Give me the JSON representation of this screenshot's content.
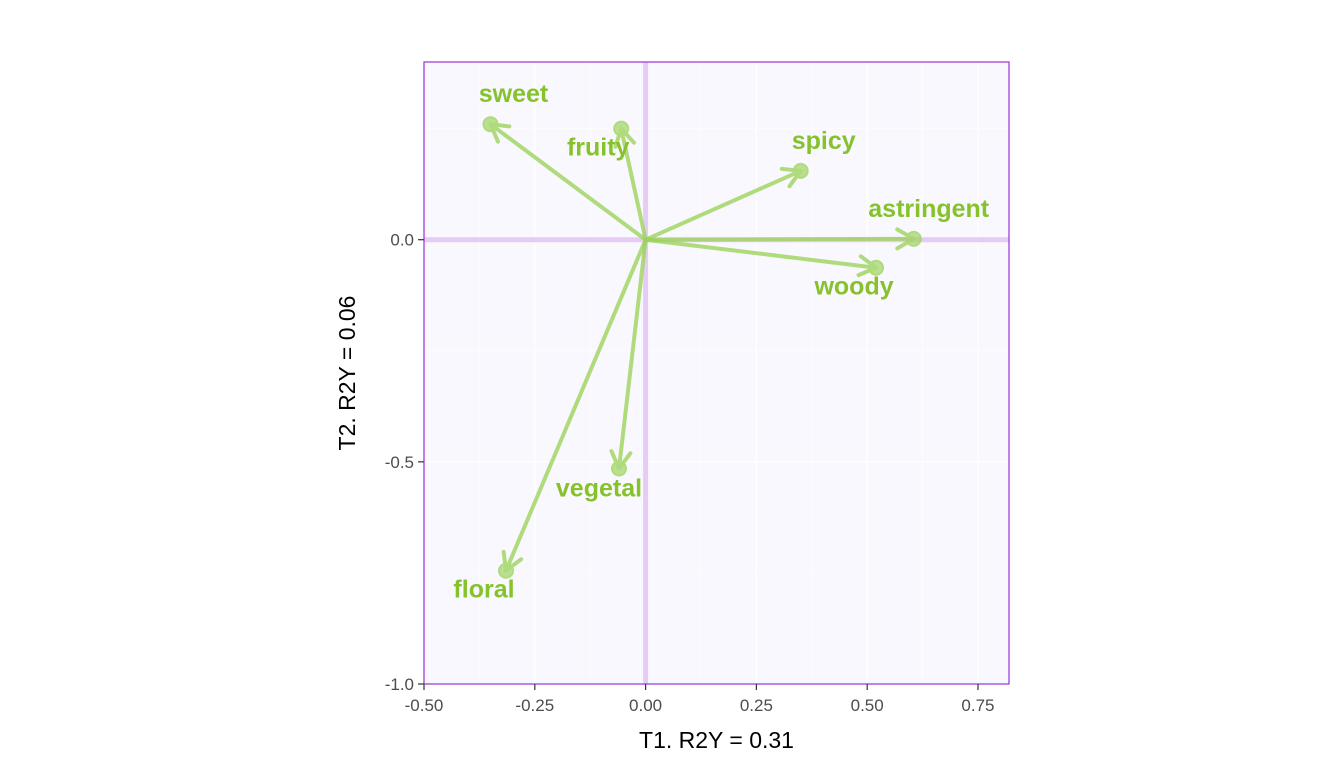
{
  "chart_data": {
    "type": "scatter",
    "subtype": "loading-arrows",
    "xlabel": "T1. R2Y = 0.31",
    "ylabel": "T2. R2Y = 0.06",
    "xlim": [
      -0.5,
      0.82
    ],
    "ylim": [
      -1.0,
      0.4
    ],
    "xticks": [
      -0.5,
      -0.25,
      0.0,
      0.25,
      0.5,
      0.75
    ],
    "xtick_labels": [
      "-0.50",
      "-0.25",
      "0.00",
      "0.25",
      "0.50",
      "0.75"
    ],
    "yticks": [
      -1.0,
      -0.5,
      0.0
    ],
    "ytick_labels": [
      "-1.0",
      "-0.5",
      "0.0"
    ],
    "grid": true,
    "origin": [
      0,
      0
    ],
    "colors": {
      "panel_bg": "#f9f8fe",
      "panel_border": "#9b30d9",
      "zero_lines": "#e6ccf5",
      "grid": "#ffffff",
      "arrow": "#9bd45a",
      "label": "#86c22b"
    },
    "points": [
      {
        "name": "sweet",
        "x": -0.35,
        "y": 0.26
      },
      {
        "name": "fruity",
        "x": -0.055,
        "y": 0.25
      },
      {
        "name": "spicy",
        "x": 0.35,
        "y": 0.155
      },
      {
        "name": "astringent",
        "x": 0.605,
        "y": 0.002
      },
      {
        "name": "woody",
        "x": 0.52,
        "y": -0.063
      },
      {
        "name": "vegetal",
        "x": -0.06,
        "y": -0.515
      },
      {
        "name": "floral",
        "x": -0.315,
        "y": -0.745
      }
    ]
  }
}
